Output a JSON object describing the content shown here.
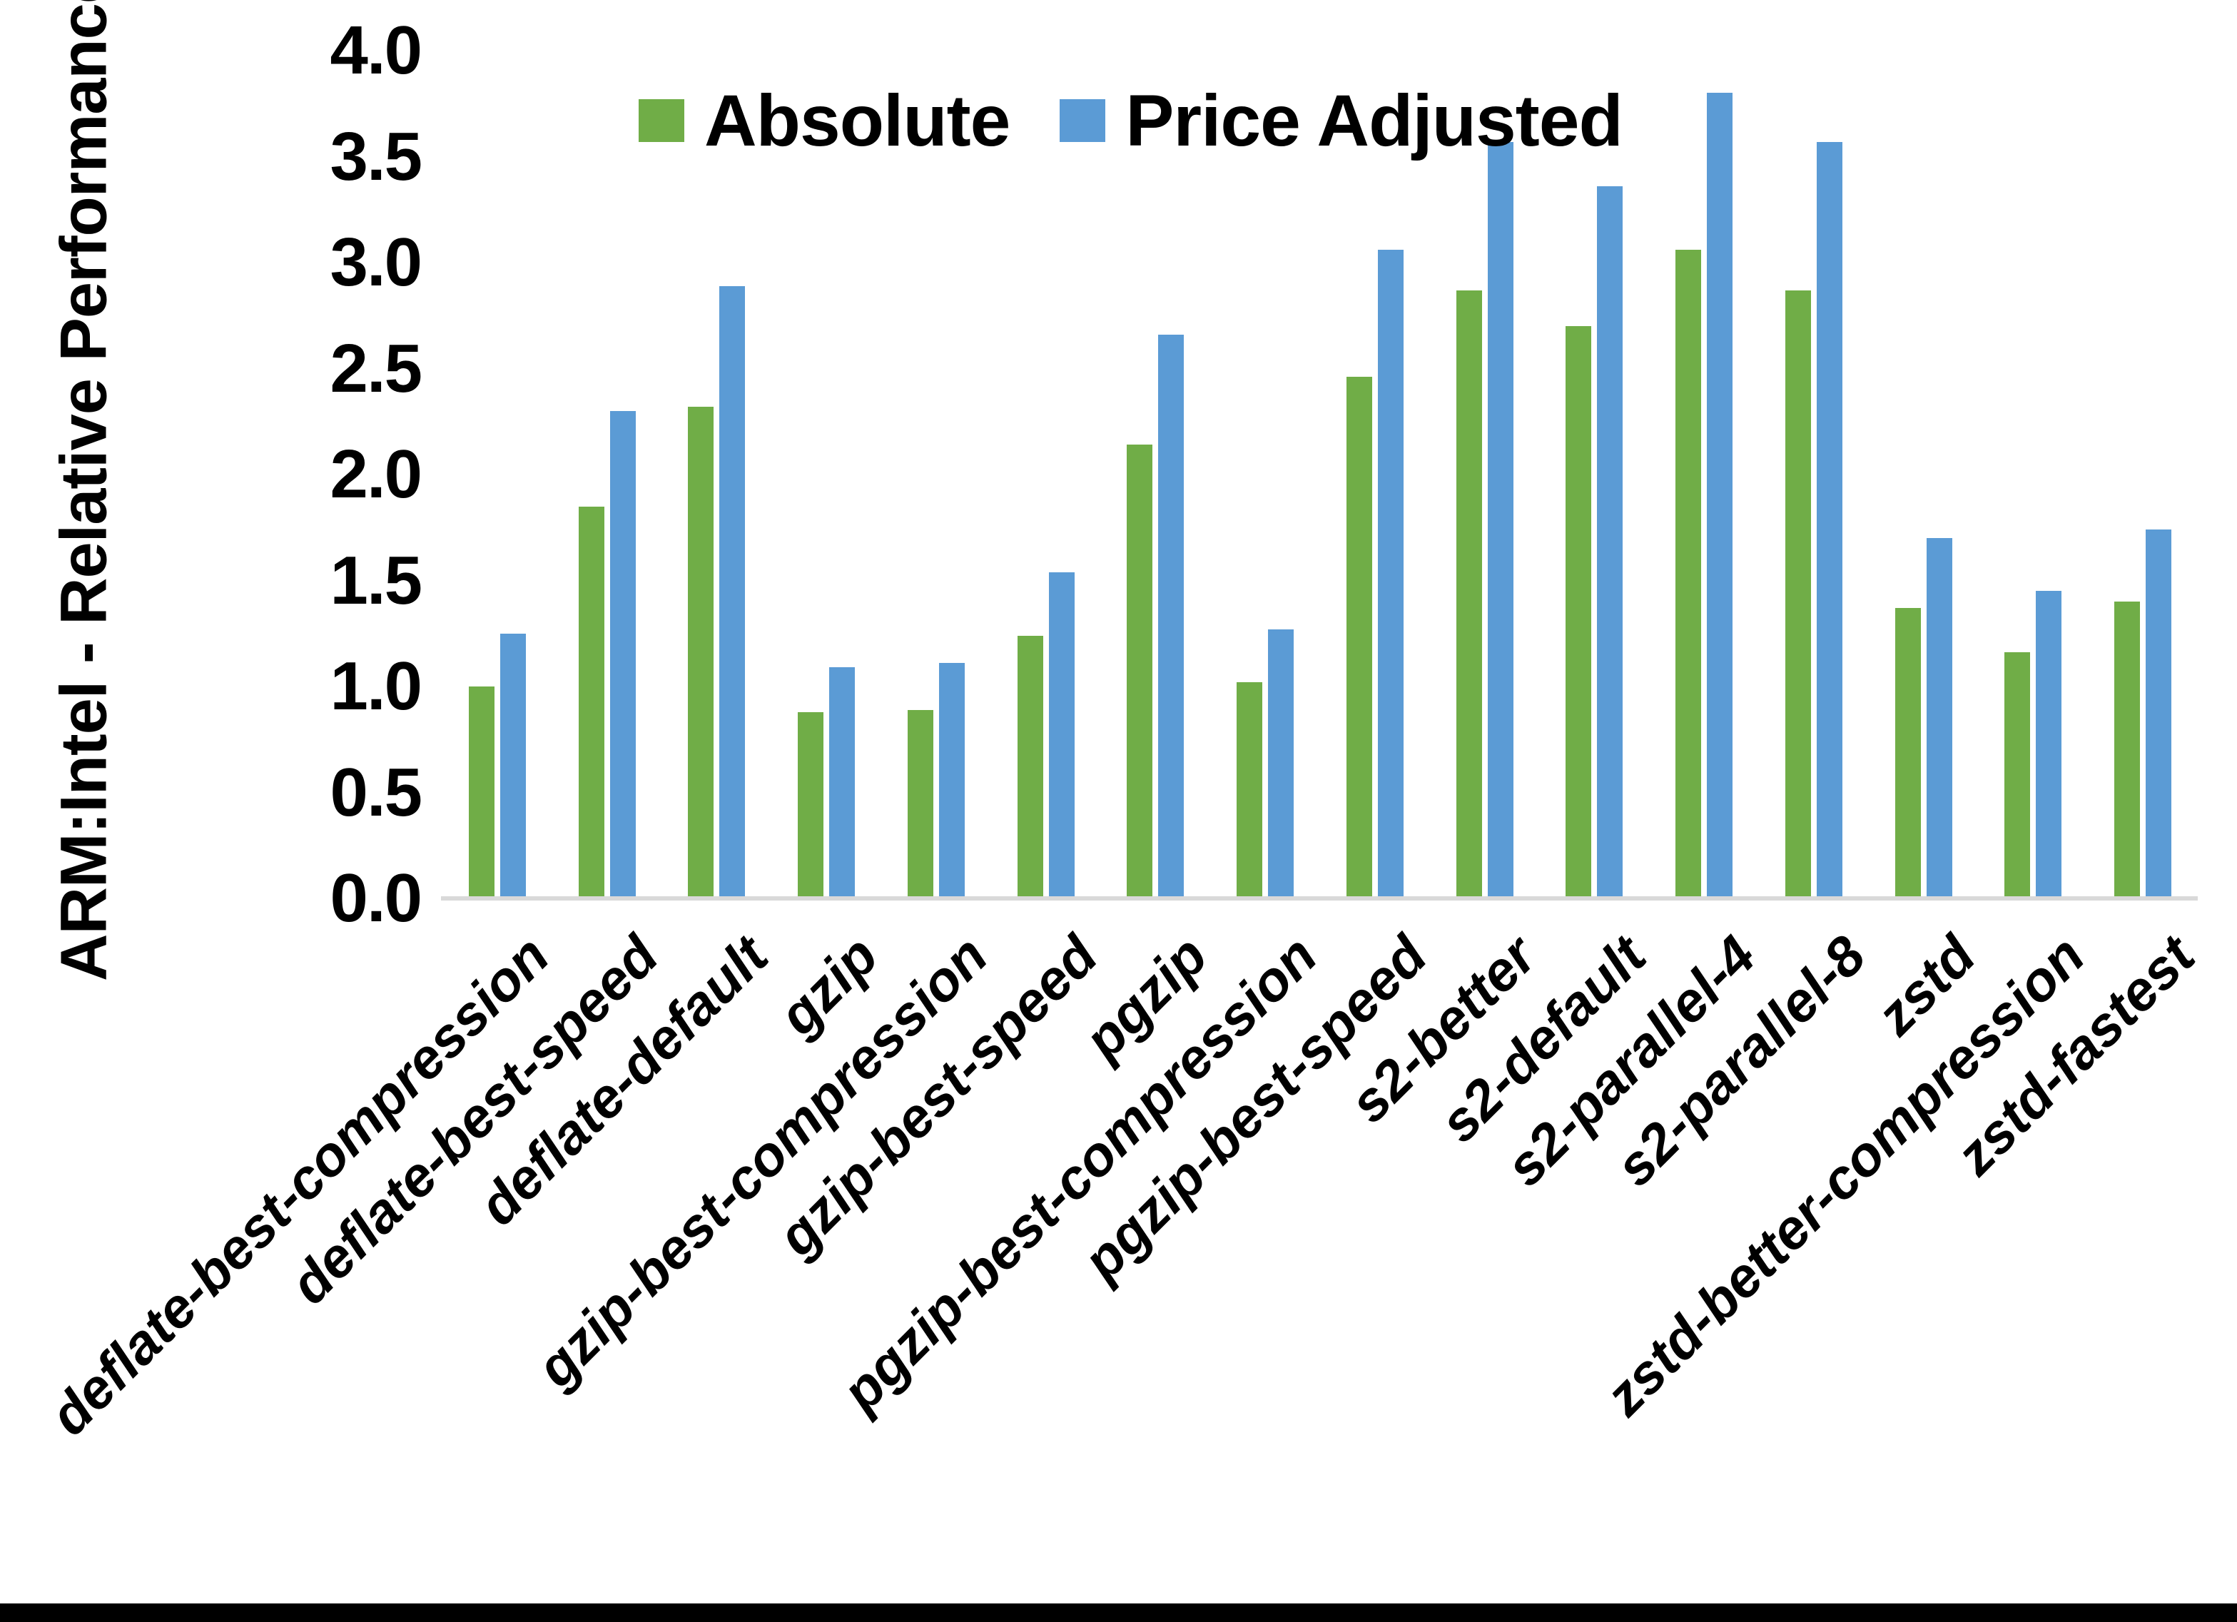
{
  "chart_data": {
    "type": "bar",
    "title": "",
    "ylabel": "ARM:Intel - Relative Performance",
    "xlabel": "",
    "ylim": [
      0.0,
      4.0
    ],
    "y_ticks": [
      "4.0",
      "3.5",
      "3.0",
      "2.5",
      "2.0",
      "1.5",
      "1.0",
      "0.5",
      "0.0"
    ],
    "grid": false,
    "legend_position": "top-center",
    "categories": [
      "deflate-best-compression",
      "deflate-best-speed",
      "deflate-default",
      "gzip",
      "gzip-best-compression",
      "gzip-best-speed",
      "pgzip",
      "pgzip-best-compression",
      "pgzip-best-speed",
      "s2-better",
      "s2-default",
      "s2-parallel-4",
      "s2-parallel-8",
      "zstd",
      "zstd-better-compression",
      "zstd-fastest"
    ],
    "series": [
      {
        "name": "Absolute",
        "color": "#70AD47",
        "values": [
          1.0,
          1.85,
          2.32,
          0.88,
          0.89,
          1.24,
          2.14,
          1.02,
          2.46,
          2.87,
          2.7,
          3.06,
          2.87,
          1.37,
          1.16,
          1.4
        ]
      },
      {
        "name": "Price Adjusted",
        "color": "#5B9BD5",
        "values": [
          1.25,
          2.3,
          2.89,
          1.09,
          1.11,
          1.54,
          2.66,
          1.27,
          3.06,
          3.57,
          3.36,
          3.8,
          3.57,
          1.7,
          1.45,
          1.74
        ]
      }
    ],
    "colors": {
      "axis_line": "#D9D9D9",
      "background": "#FFFFFF",
      "text": "#000000",
      "bottom_border": "#000000"
    }
  }
}
